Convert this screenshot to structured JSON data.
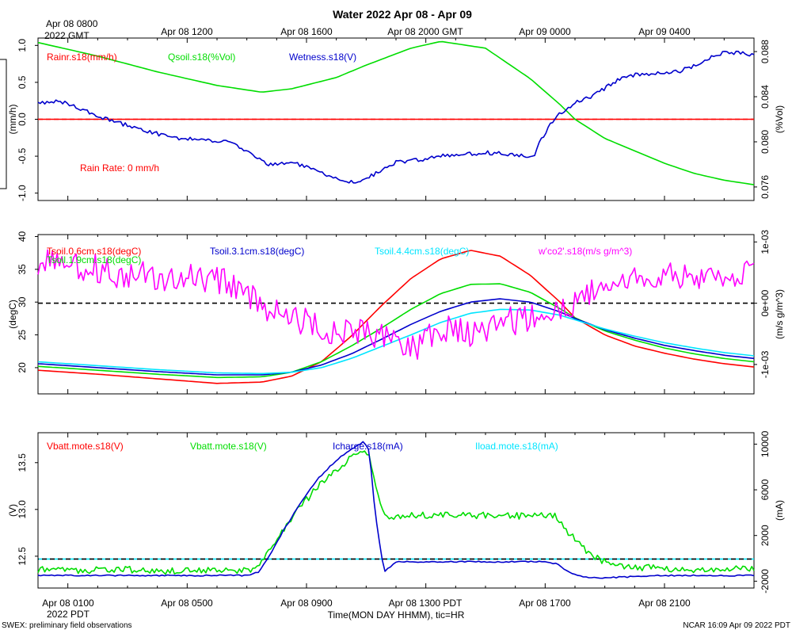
{
  "page": {
    "title": "Water 2022 Apr 08 - Apr 09",
    "footer_left": "SWEX: preliminary field observations",
    "footer_right": "NCAR 16:09 Apr 09 2022 PDT",
    "xaxis_label": "Time(MON DAY HHMM), tic=HR",
    "top_time_labels": [
      "Apr 08 0800",
      "Apr 08 1200",
      "Apr 08 1600",
      "Apr 08 2000 GMT",
      "Apr 09 0000",
      "Apr 09 0400"
    ],
    "top_time_sublabel": "2022 GMT",
    "bottom_time_labels": [
      "Apr 08 0100",
      "Apr 08 0500",
      "Apr 08 0900",
      "Apr 08 1300 PDT",
      "Apr 08 1700",
      "Apr 08 2100"
    ],
    "bottom_time_sublabel": "2022 PDT"
  },
  "chart_data": [
    {
      "type": "line",
      "panel": "water",
      "x_hours_range": [
        0.0,
        24.0
      ],
      "x_tick_hours": [
        1,
        5,
        9,
        13,
        17,
        21
      ],
      "left_axis": {
        "label": "(mm/h)",
        "range": [
          -1.1,
          1.1
        ],
        "ticks": [
          -1.0,
          -0.5,
          0.0,
          0.5,
          1.0
        ],
        "tick_labels": [
          "-1.0",
          "-0.5",
          "0.0",
          "0.5",
          "1.0"
        ]
      },
      "right_axis": {
        "label": "(%Vol)",
        "range": [
          0.0748,
          0.0892
        ],
        "ticks": [
          0.076,
          0.08,
          0.084,
          0.088
        ],
        "tick_labels": [
          "0.076",
          "0.080",
          "0.084",
          "0.088"
        ]
      },
      "dashed_ref": {
        "axis": "left",
        "value": 0.0,
        "color": "#ff0000"
      },
      "annotation": {
        "text": "Rain Rate: 0 mm/h",
        "color": "#ff0000"
      },
      "series": [
        {
          "name": "Rainr.s18(mm/h)",
          "color": "#ff0000",
          "axis": "left",
          "x": [
            0,
            24
          ],
          "values": [
            0.0,
            0.0
          ]
        },
        {
          "name": "Qsoil.s18(%Vol)",
          "color": "#00dd00",
          "axis": "right",
          "x": [
            0,
            2,
            4,
            6,
            7.5,
            8.5,
            10,
            11,
            12.5,
            13.5,
            15,
            16.5,
            17.5,
            18,
            19,
            20,
            21,
            22,
            23,
            24
          ],
          "values": [
            0.0888,
            0.0876,
            0.0862,
            0.085,
            0.0844,
            0.0847,
            0.0857,
            0.0868,
            0.0883,
            0.0889,
            0.0883,
            0.0856,
            0.0833,
            0.082,
            0.0803,
            0.0792,
            0.0781,
            0.0772,
            0.0766,
            0.0762
          ]
        },
        {
          "name": "Wetness.s18(V)",
          "color": "#0000cc",
          "axis": "left",
          "x": [
            0,
            0.7,
            1.4,
            2.3,
            3.3,
            4.5,
            5.5,
            6.3,
            7.0,
            7.7,
            8.5,
            9.2,
            9.8,
            10.3,
            10.8,
            11.4,
            12.0,
            12.8,
            13.5,
            14.2,
            15.0,
            16.0,
            16.6,
            16.8,
            17.2,
            17.5,
            18.0,
            18.5,
            19.0,
            19.5,
            20.0,
            20.5,
            21.0,
            21.5,
            22.0,
            22.4,
            23.0,
            23.5,
            24.0
          ],
          "values": [
            0.22,
            0.25,
            0.14,
            0.0,
            -0.12,
            -0.25,
            -0.28,
            -0.3,
            -0.42,
            -0.62,
            -0.58,
            -0.68,
            -0.78,
            -0.85,
            -0.83,
            -0.72,
            -0.58,
            -0.55,
            -0.5,
            -0.48,
            -0.45,
            -0.48,
            -0.52,
            -0.32,
            -0.05,
            0.08,
            0.22,
            0.3,
            0.42,
            0.55,
            0.6,
            0.62,
            0.62,
            0.65,
            0.72,
            0.82,
            0.9,
            0.9,
            0.87
          ]
        }
      ]
    },
    {
      "type": "line",
      "panel": "temperature",
      "x_hours_range": [
        0.0,
        24.0
      ],
      "x_tick_hours": [
        1,
        5,
        9,
        13,
        17,
        21
      ],
      "left_axis": {
        "label": "(degC)",
        "range": [
          16.0,
          40.3
        ],
        "ticks": [
          20,
          25,
          30,
          35,
          40
        ],
        "tick_labels": [
          "20",
          "25",
          "30",
          "35",
          "40"
        ]
      },
      "right_axis": {
        "label": "(m/s g/m^3)",
        "range": [
          -0.00148,
          0.00112
        ],
        "ticks": [
          -0.001,
          0.0,
          0.001
        ],
        "tick_labels": [
          "-1e-03",
          "0e+00",
          "1e-03"
        ]
      },
      "dashed_ref": {
        "axis": "right",
        "value": 0.0,
        "color": "#000000"
      },
      "series": [
        {
          "name": "Tsoil.0.6cm.s18(degC)",
          "color": "#ff0000",
          "axis": "left",
          "x": [
            0,
            2,
            4,
            6,
            7.5,
            8.5,
            9.5,
            10.5,
            11.5,
            12.5,
            13.5,
            14.5,
            15.5,
            16.5,
            17.5,
            18,
            19,
            20,
            21,
            22,
            23,
            24
          ],
          "values": [
            19.6,
            19.0,
            18.3,
            17.6,
            17.8,
            18.7,
            20.9,
            24.8,
            29.4,
            33.6,
            36.6,
            37.9,
            37.0,
            34.1,
            30.0,
            27.6,
            25.0,
            23.3,
            22.2,
            21.3,
            20.6,
            20.1
          ]
        },
        {
          "name": "Tsoil.1.9cm.s18(degC)",
          "color": "#00dd00",
          "axis": "left",
          "x": [
            0,
            2,
            4,
            6,
            7.5,
            8.5,
            9.5,
            10.5,
            11.5,
            12.5,
            13.5,
            14.5,
            15.5,
            16.5,
            17.5,
            18,
            19,
            20,
            21,
            22,
            23,
            24
          ],
          "values": [
            20.2,
            19.6,
            19.0,
            18.5,
            18.6,
            19.3,
            20.9,
            23.3,
            26.0,
            28.9,
            31.3,
            32.7,
            32.8,
            31.5,
            29.0,
            27.6,
            25.6,
            24.2,
            23.0,
            22.1,
            21.4,
            20.9
          ]
        },
        {
          "name": "Tsoil.3.1cm.s18(degC)",
          "color": "#0000cc",
          "axis": "left",
          "x": [
            0,
            2,
            4,
            6,
            7.5,
            8.5,
            9.5,
            10.5,
            11.5,
            12.5,
            13.5,
            14.5,
            15.5,
            16.5,
            17.5,
            18,
            19,
            20,
            21,
            22,
            23,
            24
          ],
          "values": [
            20.6,
            20.0,
            19.4,
            18.9,
            18.9,
            19.3,
            20.4,
            22.1,
            24.3,
            26.6,
            28.6,
            30.0,
            30.5,
            30.0,
            28.5,
            27.5,
            25.8,
            24.5,
            23.4,
            22.6,
            21.9,
            21.4
          ]
        },
        {
          "name": "Tsoil.4.4cm.s18(degC)",
          "color": "#00e5ff",
          "axis": "left",
          "x": [
            0,
            2,
            4,
            6,
            7.5,
            8.5,
            9.5,
            10.5,
            11.5,
            12.5,
            13.5,
            14.5,
            15.5,
            16.5,
            17.5,
            18,
            19,
            20,
            21,
            22,
            23,
            24
          ],
          "values": [
            20.9,
            20.3,
            19.7,
            19.2,
            19.1,
            19.3,
            20.0,
            21.4,
            23.2,
            25.0,
            26.9,
            28.3,
            28.9,
            28.8,
            28.0,
            27.3,
            25.9,
            24.8,
            23.8,
            23.0,
            22.3,
            21.8
          ]
        },
        {
          "name": "w'co2'.s18(m/s g/m^3)",
          "color": "#ff00ff",
          "axis": "right",
          "x": [
            0,
            0.6,
            1.2,
            1.8,
            2.4,
            3.0,
            3.6,
            4.2,
            4.8,
            5.4,
            6.0,
            6.6,
            7.2,
            7.8,
            8.4,
            9.0,
            9.6,
            10.2,
            10.8,
            11.4,
            12.0,
            12.6,
            13.2,
            13.8,
            14.4,
            15.0,
            15.6,
            16.2,
            16.8,
            17.4,
            18.0,
            18.6,
            19.2,
            19.8,
            20.4,
            21.0,
            21.6,
            22.2,
            22.8,
            23.4,
            24.0
          ],
          "values": [
            0.00055,
            0.00072,
            0.00058,
            0.00062,
            0.00048,
            0.00042,
            0.00052,
            0.00035,
            0.00046,
            0.00038,
            0.0004,
            0.00028,
            8e-05,
            -0.0001,
            -0.00025,
            -0.00032,
            -0.00042,
            -0.0005,
            -0.00045,
            -0.00055,
            -0.0006,
            -0.00075,
            -0.00052,
            -0.00042,
            -0.00048,
            -0.00045,
            -0.00025,
            -0.0003,
            -0.00012,
            -0.00018,
            2e-05,
            0.0002,
            0.00032,
            0.00038,
            0.00045,
            0.00042,
            0.00048,
            0.00044,
            0.0005,
            0.00046,
            0.00045
          ]
        }
      ]
    },
    {
      "type": "line",
      "panel": "power",
      "x_hours_range": [
        0.0,
        24.0
      ],
      "x_tick_hours": [
        1,
        5,
        9,
        13,
        17,
        21
      ],
      "left_axis": {
        "label": "(V)",
        "range": [
          12.16,
          13.82
        ],
        "ticks": [
          12.5,
          13.0,
          13.5
        ],
        "tick_labels": [
          "12.5",
          "13.0",
          "13.5"
        ]
      },
      "right_axis": {
        "label": "(mA)",
        "range": [
          -2600,
          11000
        ],
        "ticks": [
          -2000,
          2000,
          6000,
          10000
        ],
        "tick_labels": [
          "-2000",
          "2000",
          "6000",
          "10000"
        ]
      },
      "dashed_ref": {
        "axis": "left",
        "value": 12.47,
        "colors": [
          "#00e5ff",
          "#000000"
        ]
      },
      "series": [
        {
          "name": "Vbatt.mote.s18(V)",
          "color": "#ff0000",
          "axis": "left",
          "x": [],
          "values": []
        },
        {
          "name": "Vbatt.mote.s18(V)",
          "color": "#00dd00",
          "axis": "left",
          "x": [
            0,
            1,
            2,
            3,
            4,
            5,
            6,
            7,
            7.4,
            7.8,
            8.2,
            8.6,
            9.0,
            9.4,
            9.8,
            10.2,
            10.6,
            10.9,
            11.1,
            11.3,
            11.6,
            12.0,
            13.0,
            14.0,
            15.0,
            16.0,
            17.0,
            17.4,
            17.8,
            18.2,
            18.6,
            19.0,
            19.5,
            20.0,
            21.0,
            22.0,
            23.0,
            24.0
          ],
          "values": [
            12.36,
            12.35,
            12.35,
            12.36,
            12.34,
            12.35,
            12.35,
            12.35,
            12.4,
            12.58,
            12.78,
            12.95,
            13.1,
            13.25,
            13.38,
            13.48,
            13.57,
            13.62,
            13.55,
            13.3,
            12.92,
            12.92,
            12.94,
            12.93,
            12.94,
            12.93,
            12.94,
            12.92,
            12.75,
            12.6,
            12.5,
            12.44,
            12.4,
            12.38,
            12.37,
            12.36,
            12.37,
            12.36
          ]
        },
        {
          "name": "Icharge.s18(mA)",
          "color": "#0000cc",
          "axis": "right",
          "x": [
            0,
            1,
            2,
            3,
            4,
            5,
            6,
            7,
            7.4,
            7.8,
            8.2,
            8.6,
            9.0,
            9.4,
            9.8,
            10.2,
            10.6,
            10.9,
            11.1,
            11.3,
            11.6,
            12.0,
            13.0,
            14.0,
            15.0,
            16.0,
            17.0,
            17.4,
            17.8,
            18.2,
            18.6,
            19.0,
            20.0,
            21.0,
            22.0,
            23.0,
            24.0
          ],
          "values": [
            -1500,
            -1500,
            -1500,
            -1500,
            -1500,
            -1500,
            -1500,
            -1500,
            -1200,
            400,
            2300,
            4000,
            5600,
            7000,
            8100,
            9000,
            9700,
            10200,
            9500,
            4000,
            -1200,
            -300,
            -300,
            -300,
            -300,
            -300,
            -300,
            -500,
            -1200,
            -1600,
            -1700,
            -1700,
            -1600,
            -1500,
            -1500,
            -1500,
            -1500
          ]
        },
        {
          "name": "Iload.mote.s18(mA)",
          "color": "#00e5ff",
          "axis": "right",
          "x": [],
          "values": []
        }
      ]
    }
  ]
}
